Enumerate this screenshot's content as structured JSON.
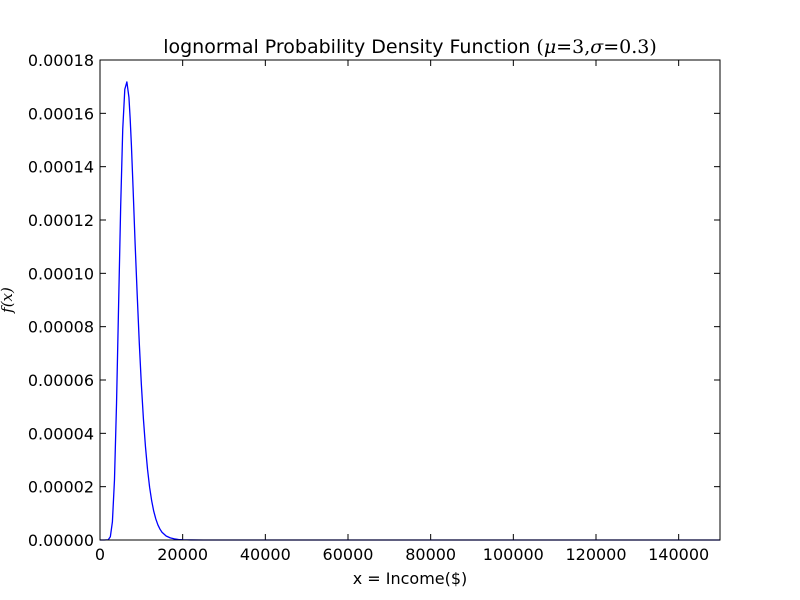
{
  "chart_data": {
    "type": "line",
    "title": {
      "prefix": "lognormal Probability Density Function ",
      "open": "(",
      "mu_symbol": "μ",
      "mu_value": "=3",
      "comma": ",",
      "sigma_symbol": "σ",
      "sigma_value": "=0.3",
      "close": ")"
    },
    "xlabel": "x = Income($)",
    "ylabel": "f(x)",
    "xlim": [
      0,
      150000
    ],
    "ylim": [
      0,
      0.00018
    ],
    "xticks": [
      0,
      20000,
      40000,
      60000,
      80000,
      100000,
      120000,
      140000
    ],
    "xtick_labels": [
      "0",
      "20000",
      "40000",
      "60000",
      "80000",
      "100000",
      "120000",
      "140000"
    ],
    "yticks": [
      0,
      2e-05,
      4e-05,
      6e-05,
      8e-05,
      0.0001,
      0.00012,
      0.00014,
      0.00016,
      0.00018
    ],
    "ytick_labels": [
      "0.00000",
      "0.00002",
      "0.00004",
      "0.00006",
      "0.00008",
      "0.00010",
      "0.00012",
      "0.00014",
      "0.00016",
      "0.00018"
    ],
    "grid": false,
    "line_color": "#0000ff",
    "series": [
      {
        "x": [
          0,
          1000,
          2000,
          2500,
          3000,
          3500,
          4000,
          4500,
          5000,
          5500,
          6000,
          6500,
          7000,
          7300,
          7600,
          8000,
          8500,
          9000,
          9500,
          10000,
          10500,
          11000,
          11500,
          12000,
          12500,
          13000,
          13500,
          14000,
          14500,
          15000,
          16000,
          17000,
          18000,
          19000,
          20000,
          22000,
          25000,
          30000,
          40000,
          60000,
          100000,
          150000
        ],
        "values": [
          0,
          0,
          1e-07,
          1.2e-06,
          6.8e-06,
          2.25e-05,
          5.12e-05,
          8.81e-05,
          0.000125,
          0.000154,
          0.000169,
          0.0001718,
          0.000166,
          0.000158,
          0.000148,
          0.000132,
          0.000111,
          9.2e-05,
          7.4e-05,
          5.85e-05,
          4.55e-05,
          3.5e-05,
          2.65e-05,
          1.98e-05,
          1.47e-05,
          1.08e-05,
          7.9e-06,
          5.7e-06,
          4.1e-06,
          2.9e-06,
          1.5e-06,
          8e-07,
          4e-07,
          2e-07,
          1e-07,
          3e-08,
          1e-08,
          0,
          0,
          0,
          0,
          0
        ]
      }
    ]
  }
}
